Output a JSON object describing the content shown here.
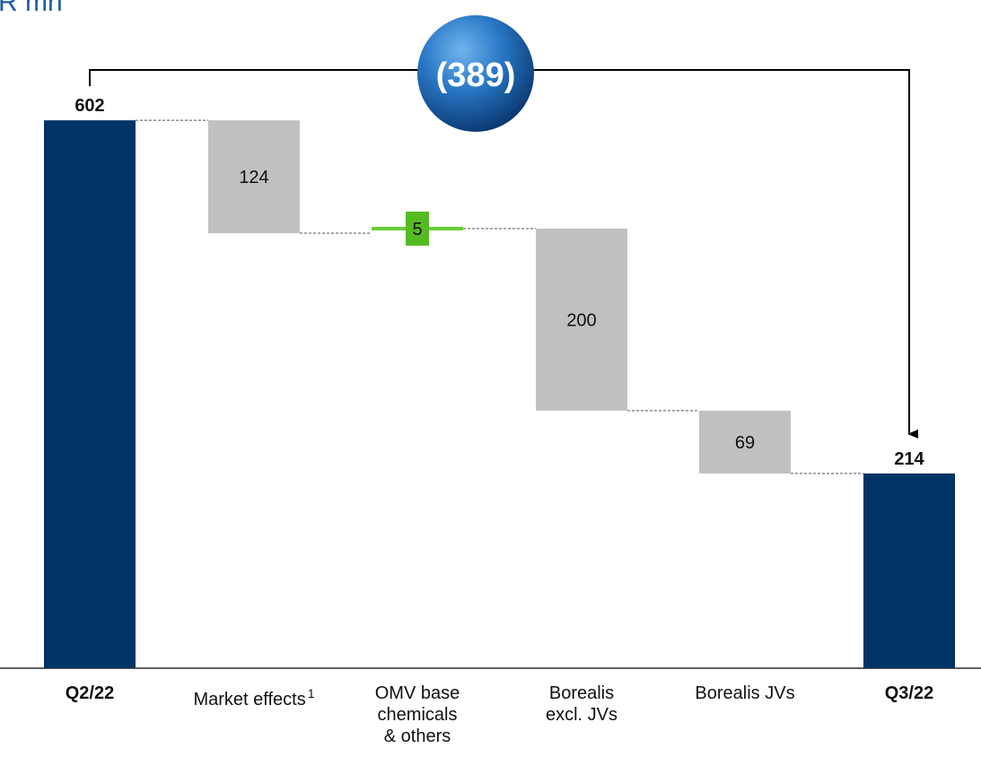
{
  "page": {
    "unit_title": "R mn"
  },
  "chart_data": {
    "type": "bar",
    "subtype": "waterfall",
    "categories": [
      "Q2/22",
      "Market effects",
      "OMV base chemicals & others",
      "Borealis excl. JVs",
      "Borealis JVs",
      "Q3/22"
    ],
    "category_lines": [
      [
        "Q2/22"
      ],
      [
        "Market effects"
      ],
      [
        "OMV base",
        "chemicals",
        "& others"
      ],
      [
        "Borealis",
        "excl. JVs"
      ],
      [
        "Borealis JVs"
      ],
      [
        "Q3/22"
      ]
    ],
    "category_bold": [
      true,
      false,
      false,
      false,
      false,
      true
    ],
    "footnotes": [
      "",
      "1",
      "",
      "",
      "",
      ""
    ],
    "bar_kinds": [
      "total",
      "decrease",
      "increase",
      "decrease",
      "decrease",
      "total"
    ],
    "values": [
      602,
      -124,
      5,
      -200,
      -69,
      214
    ],
    "data_labels": [
      "602",
      "124",
      "5",
      "200",
      "69",
      "214"
    ],
    "bridge_label": "(389)",
    "ylim": [
      0,
      640
    ],
    "grid": false,
    "colors": {
      "total": "#003366",
      "decrease": "#c0c0c0",
      "increase": "#66cc33",
      "increase_label_bg": "#55bb22",
      "bubble_light": "#3d8fd6",
      "bubble_dark": "#0a3d7a",
      "text": "#111111"
    }
  }
}
